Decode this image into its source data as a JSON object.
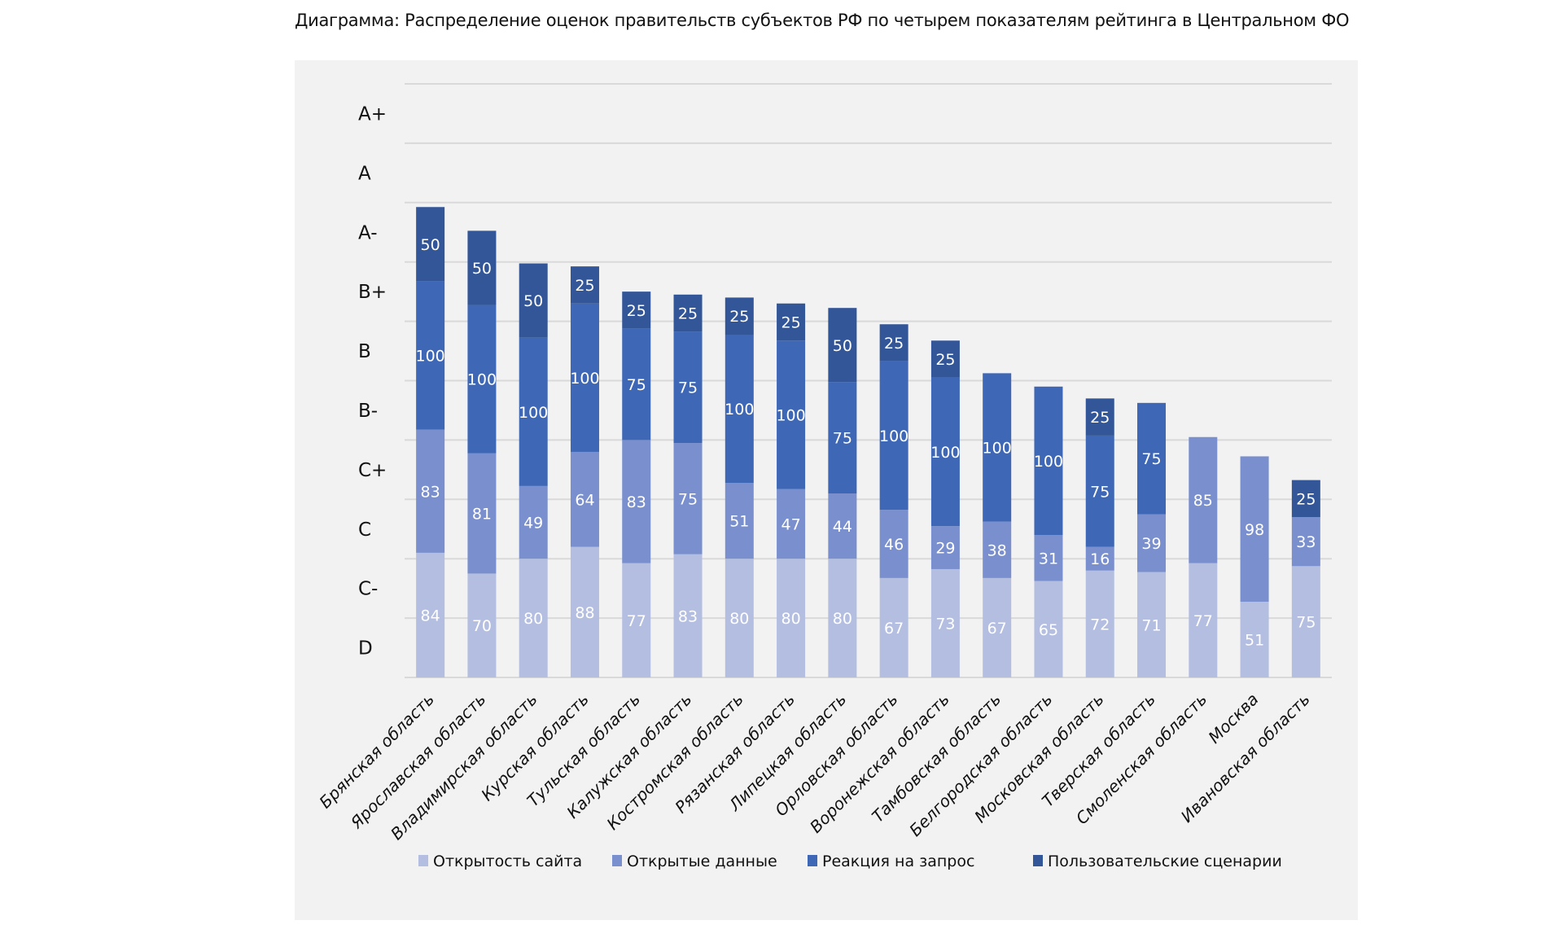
{
  "title": "Диаграмма: Распределение оценок правительств субъектов РФ по четырем показателям рейтинга в Центральном ФО",
  "chart_data": {
    "type": "bar",
    "stacked": true,
    "title": "Диаграмма: Распределение оценок правительств субъектов РФ по четырем показателям рейтинга в Центральном ФО",
    "xlabel": "",
    "ylabel": "",
    "ylim": [
      0,
      400
    ],
    "grid": true,
    "legend_position": "bottom",
    "y_grade_labels": [
      "D",
      "C-",
      "C",
      "C+",
      "B-",
      "B",
      "B+",
      "A-",
      "A",
      "A+"
    ],
    "categories": [
      "Брянская область",
      "Ярославская область",
      "Владимирская область",
      "Курская область",
      "Тульская область",
      "Калужская область",
      "Костромская область",
      "Рязанская область",
      "Липецкая область",
      "Орловская область",
      "Воронежская область",
      "Тамбовская область",
      "Белгородская область",
      "Московская область",
      "Тверская область",
      "Смоленская область",
      "Москва",
      "Ивановская область"
    ],
    "series": [
      {
        "name": "Открытость сайта",
        "color": "#B4BEE0",
        "values": [
          84,
          70,
          80,
          88,
          77,
          83,
          80,
          80,
          80,
          67,
          73,
          67,
          65,
          72,
          71,
          77,
          51,
          75
        ]
      },
      {
        "name": "Открытые данные",
        "color": "#7A8FCD",
        "values": [
          83,
          81,
          49,
          64,
          83,
          75,
          51,
          47,
          44,
          46,
          29,
          38,
          31,
          16,
          39,
          85,
          98,
          33
        ]
      },
      {
        "name": "Реакция на запрос",
        "color": "#3E67B6",
        "values": [
          100,
          100,
          100,
          100,
          75,
          75,
          100,
          100,
          75,
          100,
          100,
          100,
          100,
          75,
          75,
          0,
          0,
          0
        ]
      },
      {
        "name": "Пользовательские сценарии",
        "color": "#325697",
        "values": [
          50,
          50,
          50,
          25,
          25,
          25,
          25,
          25,
          50,
          25,
          25,
          0,
          0,
          25,
          0,
          0,
          0,
          25
        ]
      }
    ]
  }
}
